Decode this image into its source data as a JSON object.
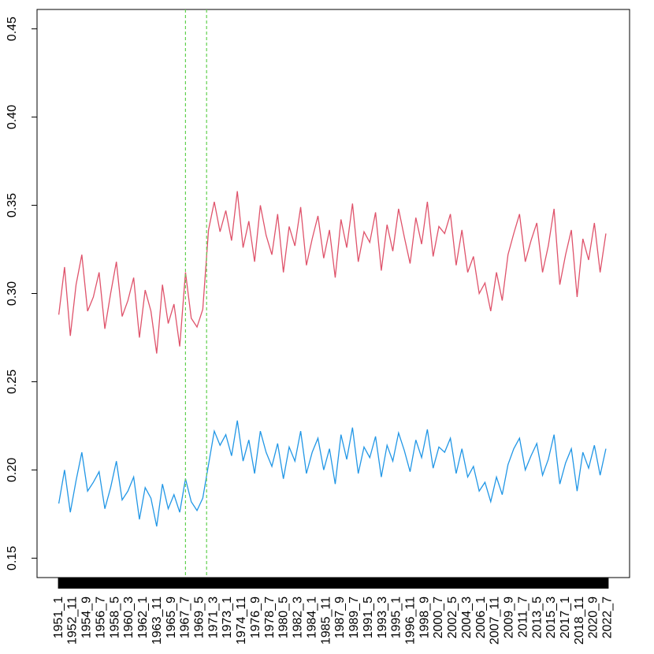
{
  "chart_data": {
    "type": "line",
    "x": [
      1,
      10,
      19,
      28,
      37,
      46,
      55,
      64,
      73,
      82,
      91,
      100,
      109,
      118,
      127,
      136,
      145,
      154,
      163,
      172,
      181,
      190,
      199,
      208,
      217,
      226,
      235,
      244,
      253,
      262,
      271,
      280,
      289,
      298,
      307,
      316,
      325,
      334,
      343,
      352,
      361,
      370,
      379,
      388,
      397,
      406,
      415,
      424,
      433,
      442,
      451,
      460,
      469,
      478,
      487,
      496,
      505,
      514,
      523,
      532,
      541,
      550,
      559,
      568,
      577,
      586,
      595,
      604,
      613,
      622,
      631,
      640,
      649,
      658,
      667,
      676,
      685,
      694,
      703,
      712,
      721,
      730,
      739,
      748,
      757,
      766,
      775,
      784,
      793,
      802,
      811,
      820,
      829,
      838,
      847,
      856
    ],
    "series": [
      {
        "color": "#DF536B",
        "values": [
          0.288,
          0.315,
          0.276,
          0.305,
          0.322,
          0.29,
          0.298,
          0.312,
          0.28,
          0.3,
          0.318,
          0.287,
          0.296,
          0.309,
          0.275,
          0.302,
          0.29,
          0.266,
          0.305,
          0.283,
          0.294,
          0.27,
          0.312,
          0.286,
          0.281,
          0.291,
          0.336,
          0.352,
          0.335,
          0.347,
          0.33,
          0.358,
          0.326,
          0.341,
          0.318,
          0.35,
          0.333,
          0.322,
          0.345,
          0.312,
          0.338,
          0.327,
          0.349,
          0.316,
          0.331,
          0.344,
          0.32,
          0.336,
          0.309,
          0.342,
          0.326,
          0.351,
          0.318,
          0.335,
          0.329,
          0.346,
          0.313,
          0.339,
          0.324,
          0.348,
          0.332,
          0.317,
          0.343,
          0.328,
          0.352,
          0.321,
          0.338,
          0.334,
          0.345,
          0.316,
          0.336,
          0.312,
          0.321,
          0.3,
          0.306,
          0.29,
          0.312,
          0.296,
          0.322,
          0.334,
          0.345,
          0.318,
          0.33,
          0.34,
          0.312,
          0.327,
          0.348,
          0.305,
          0.322,
          0.336,
          0.298,
          0.331,
          0.319,
          0.34,
          0.312,
          0.334
        ]
      },
      {
        "color": "#2297E6",
        "values": [
          0.181,
          0.2,
          0.176,
          0.194,
          0.21,
          0.188,
          0.193,
          0.199,
          0.178,
          0.19,
          0.205,
          0.183,
          0.188,
          0.196,
          0.172,
          0.19,
          0.184,
          0.168,
          0.192,
          0.178,
          0.186,
          0.176,
          0.195,
          0.182,
          0.177,
          0.184,
          0.203,
          0.222,
          0.214,
          0.22,
          0.208,
          0.228,
          0.205,
          0.217,
          0.198,
          0.222,
          0.21,
          0.202,
          0.215,
          0.195,
          0.213,
          0.205,
          0.222,
          0.198,
          0.21,
          0.218,
          0.2,
          0.212,
          0.192,
          0.22,
          0.206,
          0.224,
          0.198,
          0.213,
          0.207,
          0.219,
          0.196,
          0.214,
          0.205,
          0.221,
          0.211,
          0.199,
          0.217,
          0.207,
          0.223,
          0.201,
          0.213,
          0.21,
          0.218,
          0.198,
          0.212,
          0.196,
          0.202,
          0.188,
          0.193,
          0.182,
          0.196,
          0.186,
          0.203,
          0.212,
          0.218,
          0.2,
          0.208,
          0.215,
          0.197,
          0.206,
          0.22,
          0.192,
          0.204,
          0.212,
          0.188,
          0.21,
          0.201,
          0.214,
          0.197,
          0.212
        ]
      }
    ],
    "vlines": [
      199,
      232
    ],
    "vline_color": "#61D04F",
    "xlim": [
      -33,
      893
    ],
    "xticks": [
      {
        "value": 1,
        "label": "1951_1"
      },
      {
        "value": 23,
        "label": "1952_11"
      },
      {
        "value": 45,
        "label": "1954_9"
      },
      {
        "value": 67,
        "label": "1956_7"
      },
      {
        "value": 89,
        "label": "1958_5"
      },
      {
        "value": 111,
        "label": "1960_3"
      },
      {
        "value": 133,
        "label": "1962_1"
      },
      {
        "value": 155,
        "label": "1963_11"
      },
      {
        "value": 177,
        "label": "1965_9"
      },
      {
        "value": 199,
        "label": "1967_7"
      },
      {
        "value": 221,
        "label": "1969_5"
      },
      {
        "value": 243,
        "label": "1971_3"
      },
      {
        "value": 265,
        "label": "1973_1"
      },
      {
        "value": 287,
        "label": "1974_11"
      },
      {
        "value": 309,
        "label": "1976_9"
      },
      {
        "value": 331,
        "label": "1978_7"
      },
      {
        "value": 353,
        "label": "1980_5"
      },
      {
        "value": 375,
        "label": "1982_3"
      },
      {
        "value": 397,
        "label": "1984_1"
      },
      {
        "value": 419,
        "label": "1985_11"
      },
      {
        "value": 441,
        "label": "1987_9"
      },
      {
        "value": 463,
        "label": "1989_7"
      },
      {
        "value": 485,
        "label": "1991_5"
      },
      {
        "value": 507,
        "label": "1993_3"
      },
      {
        "value": 529,
        "label": "1995_1"
      },
      {
        "value": 551,
        "label": "1996_11"
      },
      {
        "value": 573,
        "label": "1998_9"
      },
      {
        "value": 595,
        "label": "2000_7"
      },
      {
        "value": 617,
        "label": "2002_5"
      },
      {
        "value": 639,
        "label": "2004_3"
      },
      {
        "value": 661,
        "label": "2006_1"
      },
      {
        "value": 683,
        "label": "2007_11"
      },
      {
        "value": 705,
        "label": "2009_9"
      },
      {
        "value": 727,
        "label": "2011_7"
      },
      {
        "value": 749,
        "label": "2013_5"
      },
      {
        "value": 771,
        "label": "2015_3"
      },
      {
        "value": 793,
        "label": "2017_1"
      },
      {
        "value": 815,
        "label": "2018_11"
      },
      {
        "value": 837,
        "label": "2020_9"
      },
      {
        "value": 859,
        "label": "2022_7"
      }
    ],
    "ylim": [
      0.139,
      0.461
    ],
    "yticks": [
      0.15,
      {
        "value": 0.2,
        "label": "0.20"
      },
      0.25,
      {
        "value": 0.3,
        "label": "0.30"
      },
      0.35,
      {
        "value": 0.4,
        "label": "0.40"
      },
      0.45
    ]
  }
}
